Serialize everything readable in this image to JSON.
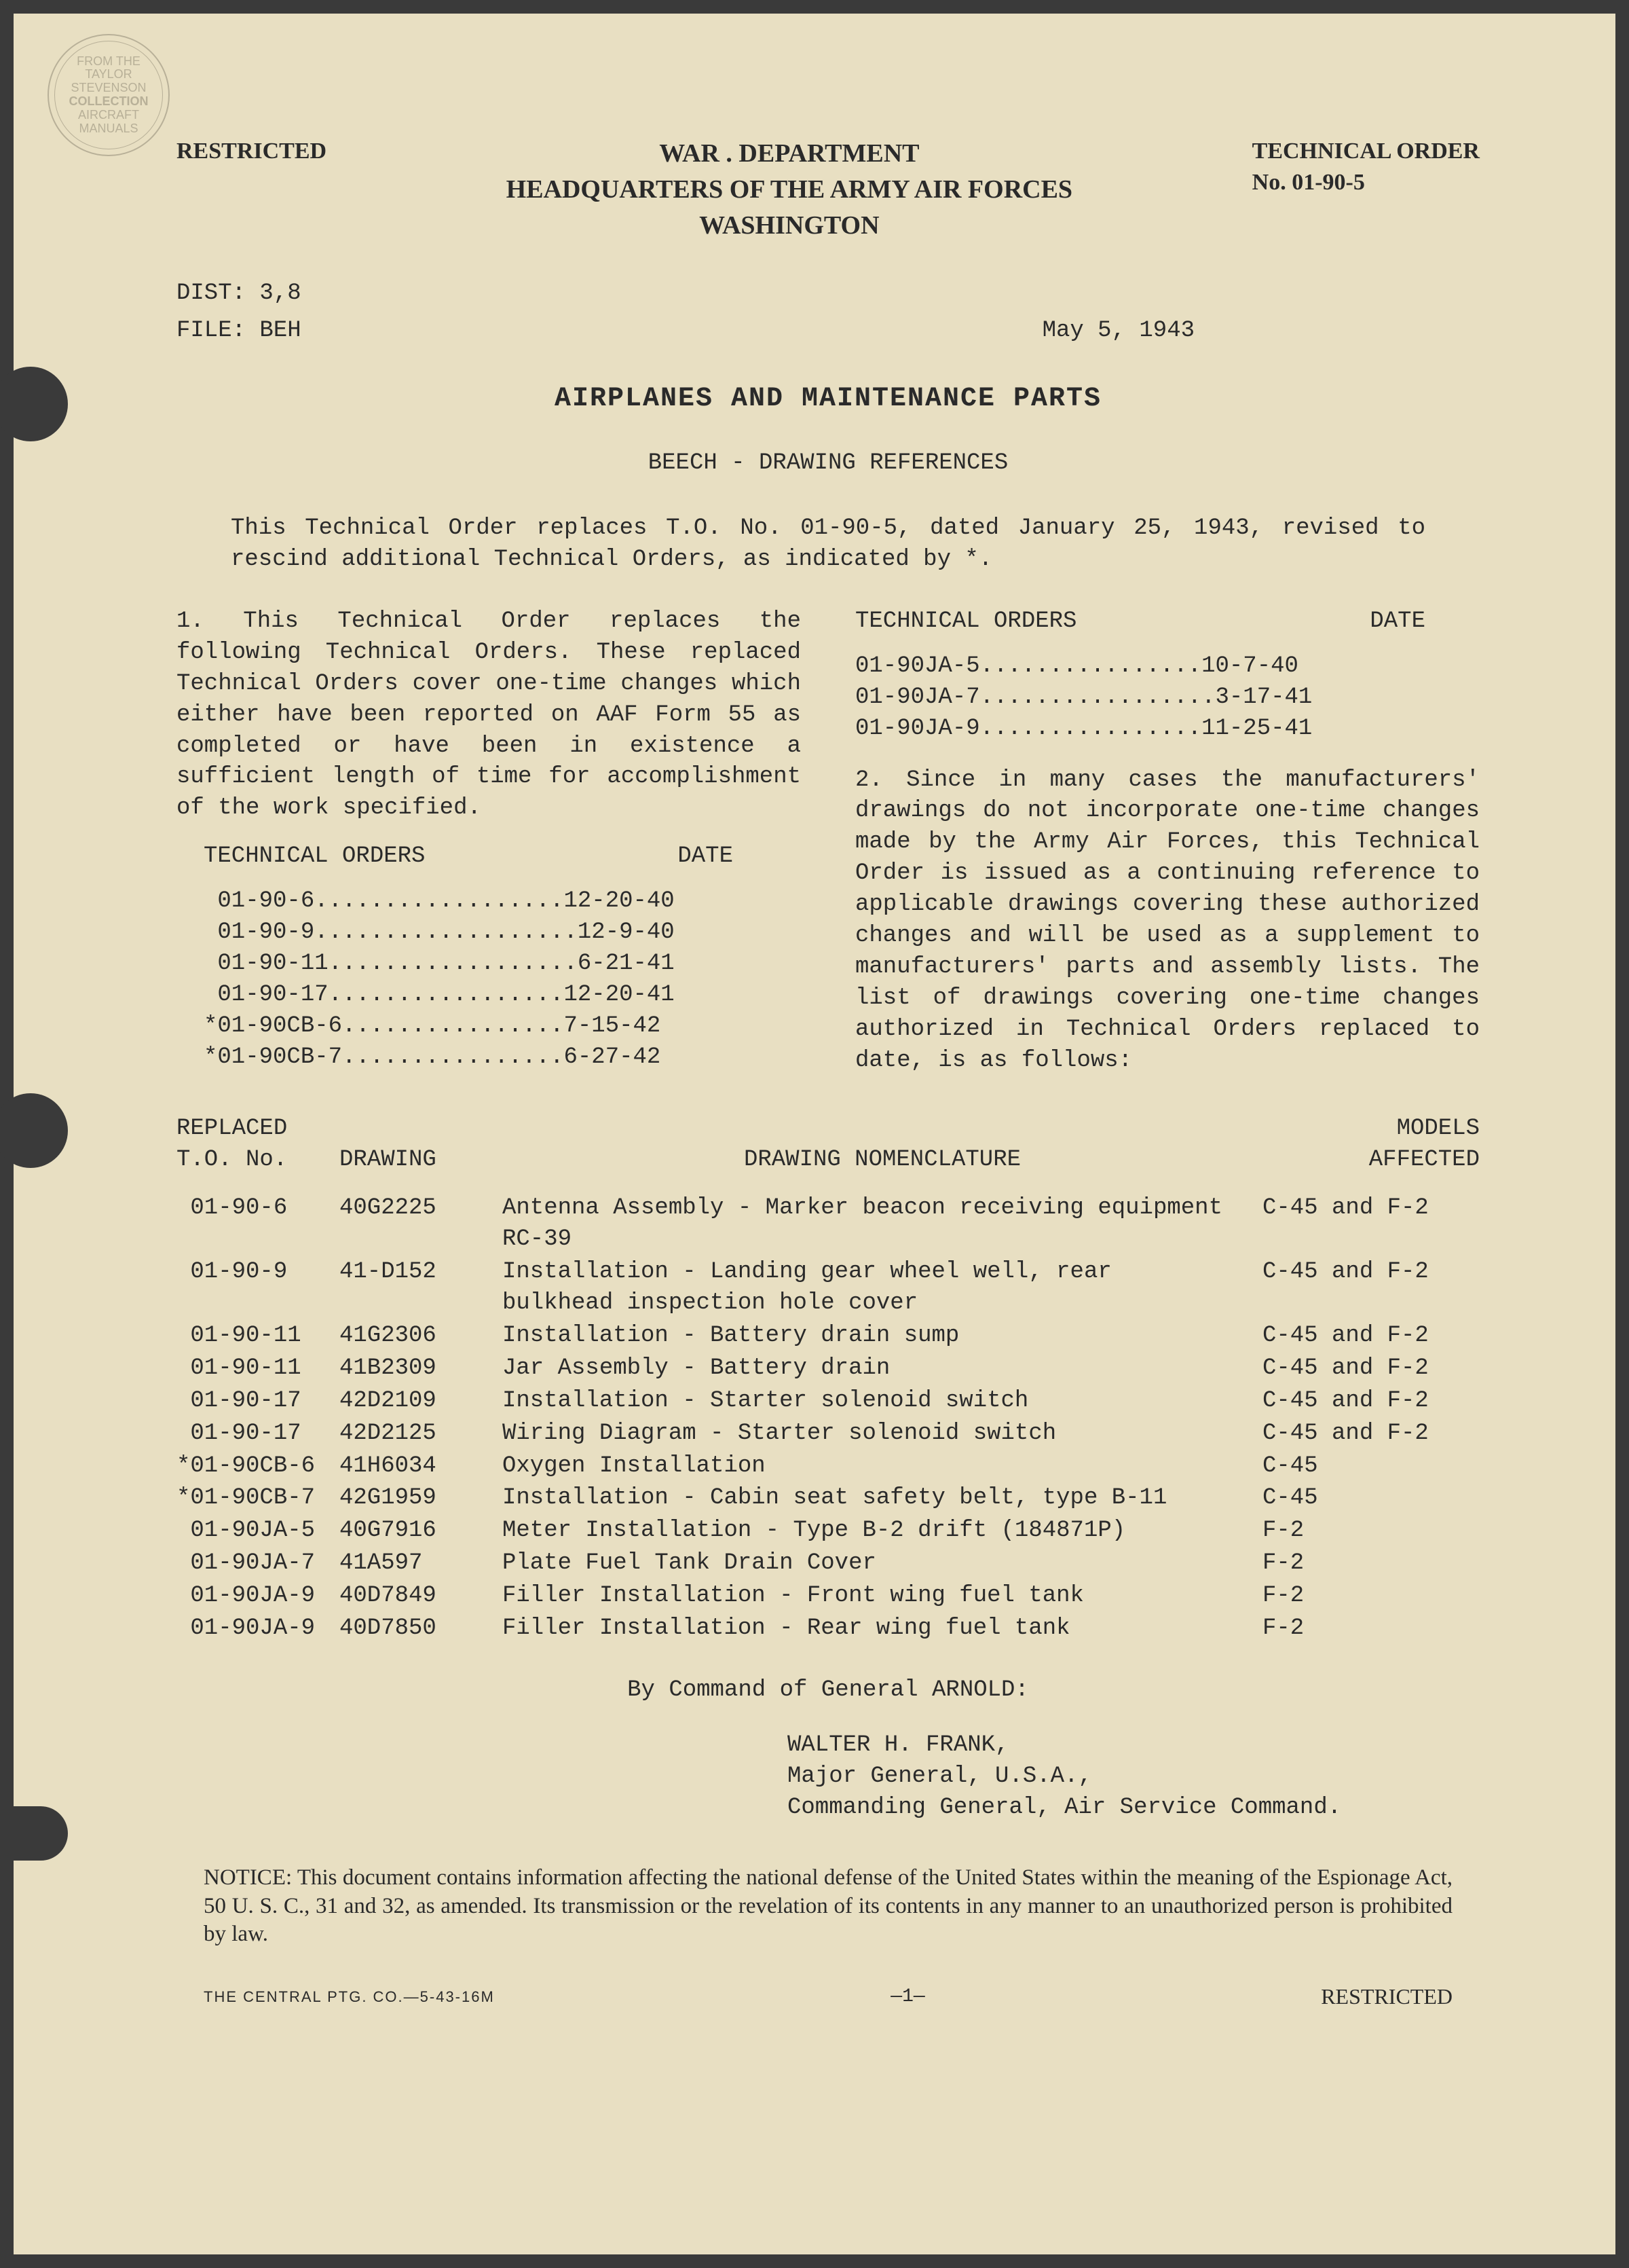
{
  "watermark": {
    "line1": "FROM THE",
    "line2": "TAYLOR",
    "line3": "STEVENSON",
    "line4": "COLLECTION",
    "line5": "AIRCRAFT",
    "line6": "MANUALS"
  },
  "header": {
    "restricted": "RESTRICTED",
    "dept_line1": "WAR . DEPARTMENT",
    "dept_line2": "HEADQUARTERS OF THE ARMY AIR FORCES",
    "dept_line3": "WASHINGTON",
    "tech_order_label": "TECHNICAL ORDER",
    "tech_order_no": "No. 01-90-5"
  },
  "meta": {
    "dist": "DIST: 3,8",
    "file": "FILE: BEH",
    "date": "May 5, 1943"
  },
  "titles": {
    "main": "AIRPLANES AND MAINTENANCE PARTS",
    "sub": "BEECH - DRAWING REFERENCES"
  },
  "intro": "This Technical Order replaces T.O. No. 01-90-5, dated January 25, 1943, revised to rescind additional Technical Orders, as indicated by *.",
  "para1": "1. This Technical Order replaces the following Technical Orders. These replaced Technical Orders cover one-time changes which either have been reported on AAF Form 55 as completed or have been in existence a sufficient length of time for accomplishment of the work specified.",
  "para2": "2. Since in many cases the manufacturers' drawings do not incorporate one-time changes made by the Army Air Forces, this Technical Order is issued as a continuing reference to applicable drawings covering these authorized changes and will be used as a supplement to manufacturers' parts and assembly lists. The list of drawings covering one-time changes authorized in Technical Orders replaced to date, is as follows:",
  "to_col_headers": {
    "orders": "TECHNICAL ORDERS",
    "date": "DATE"
  },
  "to_list_left": [
    {
      "no": " 01-90-6",
      "dots": "..................",
      "date": "12-20-40"
    },
    {
      "no": " 01-90-9",
      "dots": "...................",
      "date": "12-9-40"
    },
    {
      "no": " 01-90-11",
      "dots": "..................",
      "date": "6-21-41"
    },
    {
      "no": " 01-90-17",
      "dots": ".................",
      "date": "12-20-41"
    },
    {
      "no": "*01-90CB-6",
      "dots": "................",
      "date": "7-15-42"
    },
    {
      "no": "*01-90CB-7",
      "dots": "................",
      "date": "6-27-42"
    }
  ],
  "to_list_right": [
    {
      "no": "01-90JA-5",
      "dots": "................",
      "date": "10-7-40"
    },
    {
      "no": "01-90JA-7",
      "dots": ".................",
      "date": "3-17-41"
    },
    {
      "no": "01-90JA-9",
      "dots": "................",
      "date": "11-25-41"
    }
  ],
  "table": {
    "headers": {
      "replaced1": "REPLACED",
      "replaced2": "T.O. No.",
      "drawing": "DRAWING",
      "nomen": "DRAWING NOMENCLATURE",
      "models1": "MODELS",
      "models2": "AFFECTED"
    },
    "rows": [
      {
        "to": " 01-90-6",
        "drawing": "40G2225",
        "nomen": "Antenna Assembly - Marker beacon receiving equipment RC-39",
        "models": "C-45 and F-2"
      },
      {
        "to": " 01-90-9",
        "drawing": "41-D152",
        "nomen": "Installation - Landing gear wheel well, rear bulkhead inspection hole cover",
        "models": "C-45 and F-2"
      },
      {
        "to": " 01-90-11",
        "drawing": "41G2306",
        "nomen": "Installation - Battery drain sump",
        "models": "C-45 and F-2"
      },
      {
        "to": " 01-90-11",
        "drawing": "41B2309",
        "nomen": "Jar Assembly - Battery drain",
        "models": "C-45 and F-2"
      },
      {
        "to": " 01-90-17",
        "drawing": "42D2109",
        "nomen": "Installation - Starter solenoid switch",
        "models": "C-45 and F-2"
      },
      {
        "to": " 01-90-17",
        "drawing": "42D2125",
        "nomen": "Wiring Diagram - Starter solenoid switch",
        "models": "C-45 and F-2"
      },
      {
        "to": "*01-90CB-6",
        "drawing": "41H6034",
        "nomen": "Oxygen Installation",
        "models": "C-45"
      },
      {
        "to": "*01-90CB-7",
        "drawing": "42G1959",
        "nomen": "Installation - Cabin seat safety belt, type B-11",
        "models": "C-45"
      },
      {
        "to": " 01-90JA-5",
        "drawing": "40G7916",
        "nomen": "Meter Installation - Type B-2 drift (184871P)",
        "models": "F-2"
      },
      {
        "to": " 01-90JA-7",
        "drawing": "41A597",
        "nomen": "Plate Fuel Tank Drain Cover",
        "models": "F-2"
      },
      {
        "to": " 01-90JA-9",
        "drawing": "40D7849",
        "nomen": "Filler Installation - Front wing fuel tank",
        "models": "F-2"
      },
      {
        "to": " 01-90JA-9",
        "drawing": "40D7850",
        "nomen": "Filler Installation - Rear wing fuel tank",
        "models": "F-2"
      }
    ]
  },
  "command": "By Command of General ARNOLD:",
  "signature": {
    "name": "WALTER H. FRANK,",
    "rank": "Major General, U.S.A.,",
    "title": "Commanding General, Air Service Command."
  },
  "notice": "NOTICE: This document contains information affecting the national defense of the United States within the meaning of the Espionage Act, 50 U. S. C., 31 and 32, as amended. Its transmission or the revelation of its contents in any manner to an unauthorized person is prohibited by law.",
  "footer": {
    "left": "THE CENTRAL PTG. CO.—5-43-16M",
    "center": "—1—",
    "right": "RESTRICTED"
  },
  "colors": {
    "paper": "#e8dfc2",
    "text": "#2a2a2a",
    "background": "#3a3a3a",
    "watermark": "#b8b098"
  }
}
